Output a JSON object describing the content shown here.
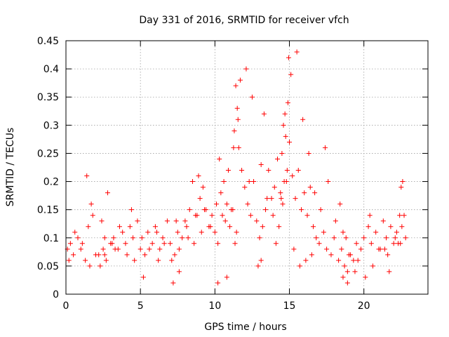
{
  "chart_data": {
    "type": "scatter",
    "title": "Day 331 of 2016, SRMTID for receiver vfch",
    "xlabel": "GPS time / hours",
    "ylabel": "SRMTID / TECUs",
    "xlim": [
      0,
      24.3
    ],
    "ylim": [
      0,
      0.45
    ],
    "xticks": [
      0,
      5,
      10,
      15,
      20
    ],
    "xtick_labels": [
      "0",
      "5",
      "10",
      "15",
      "20"
    ],
    "yticks": [
      0,
      0.05,
      0.1,
      0.15,
      0.2,
      0.25,
      0.3,
      0.35,
      0.4,
      0.45
    ],
    "ytick_labels": [
      "0",
      "0.05",
      "0.1",
      "0.15",
      "0.2",
      "0.25",
      "0.3",
      "0.35",
      "0.4",
      "0.45"
    ],
    "grid": true,
    "marker": "+",
    "color": "#ff0000",
    "series": [
      {
        "x": [
          0.1,
          0.3,
          0.5,
          0.8,
          1.0,
          1.3,
          1.5,
          1.7,
          1.8,
          2.0,
          2.3,
          2.5,
          2.7,
          3.0,
          3.2,
          3.5,
          3.8,
          4.0,
          4.3,
          4.5,
          4.8,
          5.0,
          5.3,
          5.5,
          5.8,
          6.0,
          6.3,
          6.5,
          6.8,
          7.0,
          7.3,
          7.5,
          7.8,
          8.0,
          8.3,
          8.5,
          8.7,
          8.9,
          9.0,
          9.2,
          9.4,
          9.6,
          9.8,
          10.0,
          10.2,
          10.4,
          10.5,
          10.6,
          10.8,
          11.0,
          11.2,
          11.3,
          11.4,
          11.5,
          11.6,
          11.8,
          12.0,
          12.2,
          12.4,
          12.6,
          12.8,
          13.0,
          13.2,
          13.4,
          13.6,
          13.8,
          14.0,
          14.2,
          14.4,
          14.5,
          14.6,
          14.7,
          14.8,
          14.9,
          15.0,
          15.2,
          15.4,
          15.6,
          15.8,
          16.0,
          16.2,
          16.4,
          16.6,
          16.8,
          17.0,
          17.3,
          17.5,
          17.8,
          18.0,
          18.3,
          18.5,
          18.7,
          18.9,
          19.1,
          19.3,
          19.5,
          19.8,
          20.0,
          20.3,
          20.5,
          20.8,
          21.0,
          21.3,
          21.5,
          21.8,
          22.0,
          22.2,
          22.4,
          22.5,
          22.6,
          22.8,
          0.2,
          0.6,
          1.1,
          1.6,
          2.2,
          2.6,
          3.1,
          3.6,
          4.1,
          4.6,
          5.1,
          5.6,
          6.1,
          6.6,
          7.1,
          7.6,
          8.1,
          8.6,
          9.1,
          9.7,
          10.3,
          10.9,
          11.1,
          11.35,
          11.45,
          11.55,
          11.7,
          12.1,
          12.5,
          13.1,
          13.5,
          13.9,
          14.1,
          14.3,
          14.55,
          14.65,
          14.75,
          14.85,
          14.95,
          15.1,
          15.5,
          15.9,
          16.3,
          16.7,
          17.1,
          17.6,
          18.1,
          18.6,
          19.0,
          19.6,
          20.1,
          20.6,
          21.1,
          21.6,
          22.1,
          22.45,
          22.55,
          22.7,
          1.4,
          2.8,
          3.3,
          4.4,
          5.2,
          6.2,
          7.4,
          8.2,
          8.8,
          9.3,
          10.1,
          10.7,
          11.25,
          12.3,
          13.3,
          14.45,
          15.3,
          16.1,
          17.4,
          18.4,
          18.8,
          19.4,
          20.4,
          21.4,
          22.3,
          2.4,
          2.6,
          7.2,
          7.6,
          10.2,
          10.8,
          12.9,
          13.1,
          15.7,
          16.5,
          18.6,
          18.9,
          21.7
        ],
        "y": [
          0.08,
          0.09,
          0.07,
          0.1,
          0.08,
          0.06,
          0.12,
          0.16,
          0.14,
          0.07,
          0.05,
          0.08,
          0.06,
          0.09,
          0.1,
          0.08,
          0.11,
          0.09,
          0.12,
          0.1,
          0.13,
          0.08,
          0.07,
          0.11,
          0.09,
          0.12,
          0.08,
          0.1,
          0.13,
          0.09,
          0.07,
          0.11,
          0.1,
          0.13,
          0.15,
          0.2,
          0.14,
          0.21,
          0.17,
          0.19,
          0.15,
          0.12,
          0.14,
          0.11,
          0.09,
          0.18,
          0.14,
          0.2,
          0.16,
          0.12,
          0.15,
          0.29,
          0.37,
          0.33,
          0.26,
          0.22,
          0.19,
          0.16,
          0.14,
          0.2,
          0.13,
          0.1,
          0.12,
          0.15,
          0.22,
          0.17,
          0.19,
          0.24,
          0.18,
          0.25,
          0.3,
          0.32,
          0.2,
          0.34,
          0.27,
          0.21,
          0.17,
          0.22,
          0.15,
          0.18,
          0.14,
          0.19,
          0.12,
          0.1,
          0.09,
          0.11,
          0.08,
          0.07,
          0.1,
          0.06,
          0.08,
          0.05,
          0.04,
          0.07,
          0.06,
          0.09,
          0.08,
          0.1,
          0.12,
          0.09,
          0.11,
          0.08,
          0.13,
          0.1,
          0.12,
          0.09,
          0.11,
          0.14,
          0.19,
          0.2,
          0.1,
          0.06,
          0.11,
          0.09,
          0.05,
          0.07,
          0.1,
          0.09,
          0.12,
          0.07,
          0.06,
          0.1,
          0.08,
          0.11,
          0.09,
          0.06,
          0.08,
          0.12,
          0.09,
          0.11,
          0.12,
          0.24,
          0.22,
          0.15,
          0.09,
          0.11,
          0.31,
          0.38,
          0.4,
          0.35,
          0.23,
          0.17,
          0.14,
          0.09,
          0.12,
          0.16,
          0.2,
          0.28,
          0.22,
          0.42,
          0.39,
          0.43,
          0.31,
          0.25,
          0.18,
          0.15,
          0.2,
          0.13,
          0.11,
          0.07,
          0.06,
          0.03,
          0.05,
          0.08,
          0.07,
          0.1,
          0.09,
          0.12,
          0.14,
          0.21,
          0.18,
          0.08,
          0.15,
          0.03,
          0.06,
          0.13,
          0.1,
          0.14,
          0.15,
          0.16,
          0.13,
          0.26,
          0.2,
          0.32,
          0.17,
          0.08,
          0.06,
          0.26,
          0.16,
          0.1,
          0.04,
          0.14,
          0.08,
          0.09,
          0.13,
          0.07,
          0.02,
          0.04,
          0.02,
          0.03,
          0.05,
          0.06,
          0.05,
          0.07,
          0.03,
          0.02,
          0.04
        ]
      }
    ]
  }
}
